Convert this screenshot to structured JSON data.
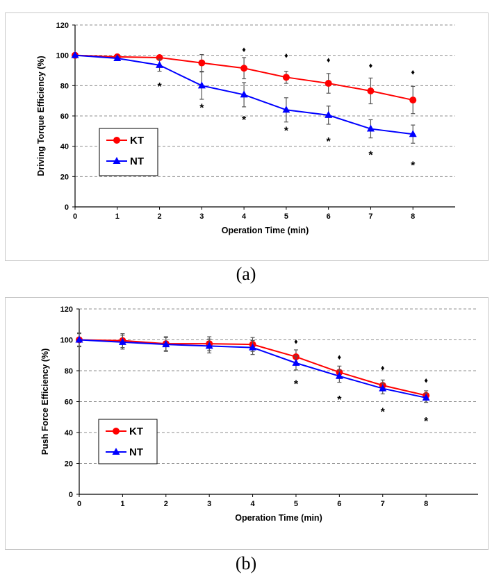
{
  "chart_data": [
    {
      "type": "line",
      "panel_label": "(a)",
      "xlabel": "Operation Time (min)",
      "ylabel": "Driving Torque Efficiency (%)",
      "x": [
        0,
        1,
        2,
        3,
        4,
        5,
        6,
        7,
        8
      ],
      "x_ticks": [
        "0",
        "1",
        "2",
        "3",
        "4",
        "5",
        "6",
        "7",
        "8"
      ],
      "xlim": [
        0,
        9
      ],
      "ylim": [
        0,
        120
      ],
      "y_ticks": [
        "0",
        "20",
        "40",
        "60",
        "80",
        "100",
        "120"
      ],
      "grid": "horizontal dashed",
      "legend_position": "middle-left",
      "series": [
        {
          "name": "KT",
          "color": "#ff0000",
          "marker": "circle",
          "values": [
            100,
            99,
            98.5,
            95,
            91.5,
            85.5,
            81.5,
            76.5,
            70.5
          ],
          "errors": [
            0,
            0.5,
            1,
            5.5,
            7,
            4,
            6.5,
            8.5,
            9
          ]
        },
        {
          "name": "NT",
          "color": "#0000ff",
          "marker": "triangle",
          "values": [
            100,
            98,
            93.5,
            80,
            74,
            64,
            60.5,
            51.5,
            48
          ],
          "errors": [
            0,
            1,
            4,
            9,
            8,
            8,
            6,
            6,
            6
          ]
        }
      ],
      "annotations": [
        {
          "text": "*",
          "x": 2,
          "y": 81
        },
        {
          "text": "*",
          "x": 3,
          "y": 67
        },
        {
          "text": "*",
          "x": 4,
          "y": 59
        },
        {
          "text": "*",
          "x": 5,
          "y": 52
        },
        {
          "text": "*",
          "x": 6,
          "y": 45
        },
        {
          "text": "*",
          "x": 7,
          "y": 36
        },
        {
          "text": "*",
          "x": 8,
          "y": 29
        },
        {
          "text": "♦",
          "x": 4,
          "y": 104
        },
        {
          "text": "♦",
          "x": 5,
          "y": 100
        },
        {
          "text": "♦",
          "x": 6,
          "y": 97
        },
        {
          "text": "♦",
          "x": 7,
          "y": 93.5
        },
        {
          "text": "♦",
          "x": 8,
          "y": 89
        }
      ]
    },
    {
      "type": "line",
      "panel_label": "(b)",
      "xlabel": "Operation Time (min)",
      "ylabel": "Push Force Efficiency  (%)",
      "x": [
        0,
        1,
        2,
        3,
        4,
        5,
        6,
        7,
        8
      ],
      "x_ticks": [
        "0",
        "1",
        "2",
        "3",
        "4",
        "5",
        "6",
        "7",
        "8"
      ],
      "xlim": [
        0,
        9.2
      ],
      "ylim": [
        0,
        120
      ],
      "y_ticks": [
        "0",
        "20",
        "40",
        "60",
        "80",
        "100",
        "120"
      ],
      "grid": "horizontal dashed",
      "legend_position": "lower-left",
      "series": [
        {
          "name": "KT",
          "color": "#ff0000",
          "marker": "circle",
          "values": [
            100,
            99.5,
            97.5,
            97.5,
            97,
            89,
            79,
            70.5,
            64
          ],
          "errors": [
            4.5,
            4.5,
            4.5,
            4.5,
            4.5,
            4.5,
            4,
            3.5,
            3
          ]
        },
        {
          "name": "NT",
          "color": "#0000ff",
          "marker": "triangle",
          "values": [
            100,
            98.5,
            97,
            96,
            95,
            85,
            76.5,
            68.5,
            62.5
          ],
          "errors": [
            4,
            4.5,
            4.5,
            4.5,
            4.5,
            4.5,
            4,
            3.5,
            3
          ]
        }
      ],
      "annotations": [
        {
          "text": "*",
          "x": 5,
          "y": 73
        },
        {
          "text": "*",
          "x": 6,
          "y": 63
        },
        {
          "text": "*",
          "x": 7,
          "y": 55
        },
        {
          "text": "*",
          "x": 8,
          "y": 49
        },
        {
          "text": "♦",
          "x": 5,
          "y": 99
        },
        {
          "text": "♦",
          "x": 6,
          "y": 89
        },
        {
          "text": "♦",
          "x": 7,
          "y": 82
        },
        {
          "text": "♦",
          "x": 8,
          "y": 74
        }
      ]
    }
  ]
}
